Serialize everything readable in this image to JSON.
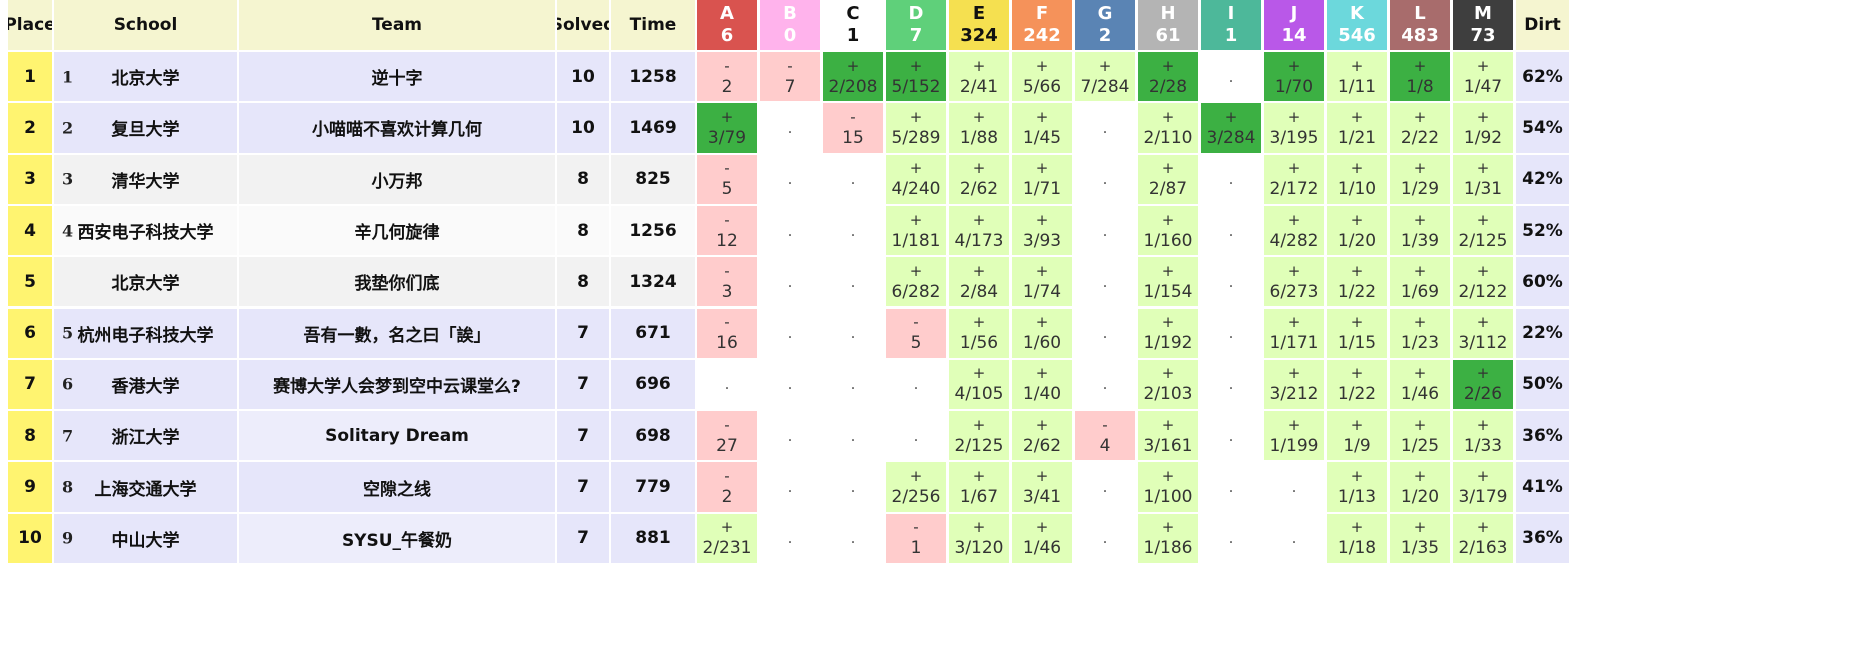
{
  "headers": {
    "place": "Place",
    "school": "School",
    "team": "Team",
    "solved": "Solved",
    "time": "Time",
    "dirt": "Dirt"
  },
  "problems": [
    {
      "letter": "A",
      "count": "6",
      "color": "#d9534f",
      "text": "#ffffff"
    },
    {
      "letter": "B",
      "count": "0",
      "color": "#ffb3ec",
      "text": "#ffffff"
    },
    {
      "letter": "C",
      "count": "1",
      "color": "#ffffff",
      "text": "#111111"
    },
    {
      "letter": "D",
      "count": "7",
      "color": "#5fd07a",
      "text": "#ffffff"
    },
    {
      "letter": "E",
      "count": "324",
      "color": "#f5e050",
      "text": "#111111"
    },
    {
      "letter": "F",
      "count": "242",
      "color": "#f5925a",
      "text": "#ffffff"
    },
    {
      "letter": "G",
      "count": "2",
      "color": "#5a84b4",
      "text": "#ffffff"
    },
    {
      "letter": "H",
      "count": "61",
      "color": "#b4b4b4",
      "text": "#ffffff"
    },
    {
      "letter": "I",
      "count": "1",
      "color": "#4db89a",
      "text": "#ffffff"
    },
    {
      "letter": "J",
      "count": "14",
      "color": "#b958e8",
      "text": "#ffffff"
    },
    {
      "letter": "K",
      "count": "546",
      "color": "#6cd8dc",
      "text": "#ffffff"
    },
    {
      "letter": "L",
      "count": "483",
      "color": "#a86c6c",
      "text": "#ffffff"
    },
    {
      "letter": "M",
      "count": "73",
      "color": "#3e3e3e",
      "text": "#ffffff"
    }
  ],
  "colors": {
    "first_solve": "#3cb043",
    "solved": "#e0ffb8",
    "attempted": "#ffcccc",
    "none": "#ffffff",
    "row_lavender": "#e6e6fa",
    "row_gray": "#f2f2f2",
    "row_white": "#fafafa"
  },
  "rows": [
    {
      "place": "1",
      "rank": "1",
      "school": "北京大学",
      "team": "逆十字",
      "solved": "10",
      "time": "1258",
      "dirt": "62%",
      "cells": [
        [
          "-",
          "2"
        ],
        [
          "-",
          "7"
        ],
        [
          "*+",
          "2/208"
        ],
        [
          "*+",
          "5/152"
        ],
        [
          "+",
          "2/41"
        ],
        [
          "+",
          "5/66"
        ],
        [
          "+",
          "7/284"
        ],
        [
          "*+",
          "2/28"
        ],
        [
          "",
          ""
        ],
        [
          "*+",
          "1/70"
        ],
        [
          "+",
          "1/11"
        ],
        [
          "*+",
          "1/8"
        ],
        [
          "+",
          "1/47"
        ]
      ]
    },
    {
      "place": "2",
      "rank": "2",
      "school": "复旦大学",
      "team": "小喵喵不喜欢计算几何",
      "solved": "10",
      "time": "1469",
      "dirt": "54%",
      "cells": [
        [
          "*+",
          "3/79"
        ],
        [
          "",
          ""
        ],
        [
          "-",
          "15"
        ],
        [
          "+",
          "5/289"
        ],
        [
          "+",
          "1/88"
        ],
        [
          "+",
          "1/45"
        ],
        [
          "",
          ""
        ],
        [
          "+",
          "2/110"
        ],
        [
          "*+",
          "3/284"
        ],
        [
          "+",
          "3/195"
        ],
        [
          "+",
          "1/21"
        ],
        [
          "+",
          "2/22"
        ],
        [
          "+",
          "1/92"
        ]
      ]
    },
    {
      "place": "3",
      "rank": "3",
      "school": "清华大学",
      "team": "小万邦",
      "solved": "8",
      "time": "825",
      "dirt": "42%",
      "cells": [
        [
          "-",
          "5"
        ],
        [
          "",
          ""
        ],
        [
          "",
          ""
        ],
        [
          "+",
          "4/240"
        ],
        [
          "+",
          "2/62"
        ],
        [
          "+",
          "1/71"
        ],
        [
          "",
          ""
        ],
        [
          "+",
          "2/87"
        ],
        [
          "",
          ""
        ],
        [
          "+",
          "2/172"
        ],
        [
          "+",
          "1/10"
        ],
        [
          "+",
          "1/29"
        ],
        [
          "+",
          "1/31"
        ]
      ]
    },
    {
      "place": "4",
      "rank": "4",
      "school": "西安电子科技大学",
      "team": "辛几何旋律",
      "solved": "8",
      "time": "1256",
      "dirt": "52%",
      "cells": [
        [
          "-",
          "12"
        ],
        [
          "",
          ""
        ],
        [
          "",
          ""
        ],
        [
          "+",
          "1/181"
        ],
        [
          "+",
          "4/173"
        ],
        [
          "+",
          "3/93"
        ],
        [
          "",
          ""
        ],
        [
          "+",
          "1/160"
        ],
        [
          "",
          ""
        ],
        [
          "+",
          "4/282"
        ],
        [
          "+",
          "1/20"
        ],
        [
          "+",
          "1/39"
        ],
        [
          "+",
          "2/125"
        ]
      ]
    },
    {
      "place": "5",
      "rank": "",
      "school": "北京大学",
      "team": "我垫你们底",
      "solved": "8",
      "time": "1324",
      "dirt": "60%",
      "cells": [
        [
          "-",
          "3"
        ],
        [
          "",
          ""
        ],
        [
          "",
          ""
        ],
        [
          "+",
          "6/282"
        ],
        [
          "+",
          "2/84"
        ],
        [
          "+",
          "1/74"
        ],
        [
          "",
          ""
        ],
        [
          "+",
          "1/154"
        ],
        [
          "",
          ""
        ],
        [
          "+",
          "6/273"
        ],
        [
          "+",
          "1/22"
        ],
        [
          "+",
          "1/69"
        ],
        [
          "+",
          "2/122"
        ]
      ]
    },
    {
      "place": "6",
      "rank": "5",
      "school": "杭州电子科技大学",
      "team": "吾有一數，名之曰「誒」",
      "solved": "7",
      "time": "671",
      "dirt": "22%",
      "cells": [
        [
          "-",
          "16"
        ],
        [
          "",
          ""
        ],
        [
          "",
          ""
        ],
        [
          "-",
          "5"
        ],
        [
          "+",
          "1/56"
        ],
        [
          "+",
          "1/60"
        ],
        [
          "",
          ""
        ],
        [
          "+",
          "1/192"
        ],
        [
          "",
          ""
        ],
        [
          "+",
          "1/171"
        ],
        [
          "+",
          "1/15"
        ],
        [
          "+",
          "1/23"
        ],
        [
          "+",
          "3/112"
        ]
      ]
    },
    {
      "place": "7",
      "rank": "6",
      "school": "香港大学",
      "team": "赛博大学人会梦到空中云课堂么?",
      "solved": "7",
      "time": "696",
      "dirt": "50%",
      "cells": [
        [
          "",
          ""
        ],
        [
          "",
          ""
        ],
        [
          "",
          ""
        ],
        [
          "",
          ""
        ],
        [
          "+",
          "4/105"
        ],
        [
          "+",
          "1/40"
        ],
        [
          "",
          ""
        ],
        [
          "+",
          "2/103"
        ],
        [
          "",
          ""
        ],
        [
          "+",
          "3/212"
        ],
        [
          "+",
          "1/22"
        ],
        [
          "+",
          "1/46"
        ],
        [
          "*+",
          "2/26"
        ]
      ]
    },
    {
      "place": "8",
      "rank": "7",
      "school": "浙江大学",
      "team": "Solitary Dream",
      "solved": "7",
      "time": "698",
      "dirt": "36%",
      "cells": [
        [
          "-",
          "27"
        ],
        [
          "",
          ""
        ],
        [
          "",
          ""
        ],
        [
          "",
          ""
        ],
        [
          "+",
          "2/125"
        ],
        [
          "+",
          "2/62"
        ],
        [
          "-",
          "4"
        ],
        [
          "+",
          "3/161"
        ],
        [
          "",
          ""
        ],
        [
          "+",
          "1/199"
        ],
        [
          "+",
          "1/9"
        ],
        [
          "+",
          "1/25"
        ],
        [
          "+",
          "1/33"
        ]
      ]
    },
    {
      "place": "9",
      "rank": "8",
      "school": "上海交通大学",
      "team": "空隙之线",
      "solved": "7",
      "time": "779",
      "dirt": "41%",
      "cells": [
        [
          "-",
          "2"
        ],
        [
          "",
          ""
        ],
        [
          "",
          ""
        ],
        [
          "+",
          "2/256"
        ],
        [
          "+",
          "1/67"
        ],
        [
          "+",
          "3/41"
        ],
        [
          "",
          ""
        ],
        [
          "+",
          "1/100"
        ],
        [
          "",
          ""
        ],
        [
          "",
          ""
        ],
        [
          "+",
          "1/13"
        ],
        [
          "+",
          "1/20"
        ],
        [
          "+",
          "3/179"
        ]
      ]
    },
    {
      "place": "10",
      "rank": "9",
      "school": "中山大学",
      "team": "SYSU_午餐奶",
      "solved": "7",
      "time": "881",
      "dirt": "36%",
      "cells": [
        [
          "+",
          "2/231"
        ],
        [
          "",
          ""
        ],
        [
          "",
          ""
        ],
        [
          "-",
          "1"
        ],
        [
          "+",
          "3/120"
        ],
        [
          "+",
          "1/46"
        ],
        [
          "",
          ""
        ],
        [
          "+",
          "1/186"
        ],
        [
          "",
          ""
        ],
        [
          "",
          ""
        ],
        [
          "+",
          "1/18"
        ],
        [
          "+",
          "1/35"
        ],
        [
          "+",
          "2/163"
        ]
      ]
    }
  ]
}
